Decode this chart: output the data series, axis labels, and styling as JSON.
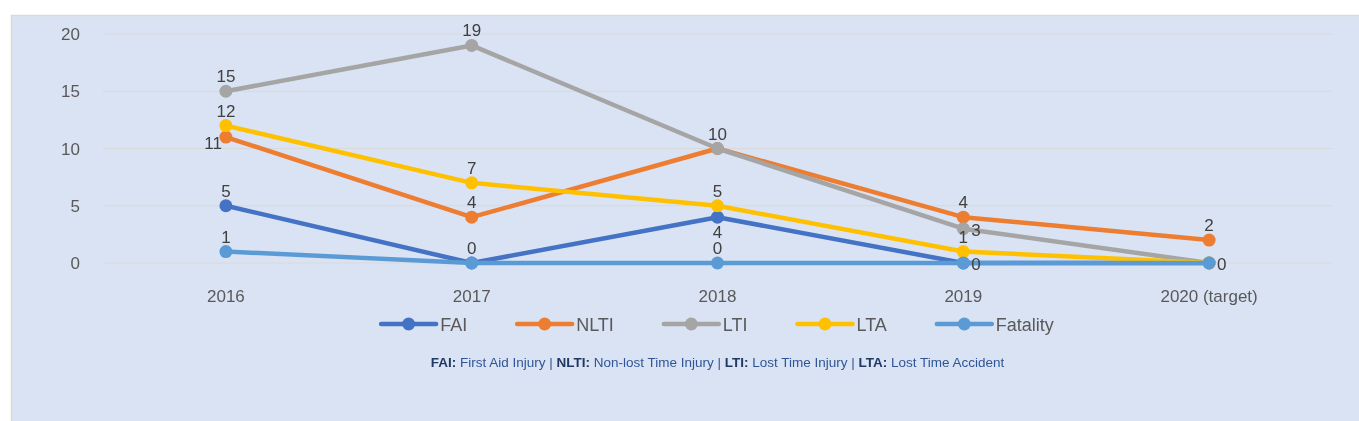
{
  "chart_data": {
    "type": "line",
    "categories": [
      "2016",
      "2017",
      "2018",
      "2019",
      "2020 (target)"
    ],
    "series": [
      {
        "name": "FAI",
        "color": "#4472c4",
        "values": [
          5,
          0,
          4,
          0,
          0
        ],
        "value_labels": [
          "5",
          null,
          "4",
          null,
          null
        ]
      },
      {
        "name": "NLTI",
        "color": "#ed7d31",
        "values": [
          11,
          4,
          10,
          4,
          2
        ],
        "value_labels": [
          "11",
          "4",
          null,
          "4",
          "2"
        ]
      },
      {
        "name": "LTI",
        "color": "#a5a5a5",
        "values": [
          15,
          19,
          10,
          3,
          0
        ],
        "value_labels": [
          "15",
          "19",
          "10",
          "3",
          null
        ]
      },
      {
        "name": "LTA",
        "color": "#ffc000",
        "values": [
          12,
          7,
          5,
          1,
          0
        ],
        "value_labels": [
          "12",
          "7",
          "5",
          "1",
          null
        ]
      },
      {
        "name": "Fatality",
        "color": "#5b9bd5",
        "values": [
          1,
          0,
          0,
          0,
          0
        ],
        "value_labels": [
          "1",
          "0",
          "0",
          "0",
          "0"
        ]
      }
    ],
    "ylim": [
      0,
      20
    ],
    "yticks": [
      0,
      5,
      10,
      15,
      20
    ],
    "grid": "y",
    "legend": "bottom",
    "marker": "circle",
    "line_style": "solid",
    "annotations": [
      "FAI: First Aid Injury | NLTI: Non-lost Time Injury | LTI: Lost Time Injury | LTA: Lost Time Accident"
    ]
  }
}
